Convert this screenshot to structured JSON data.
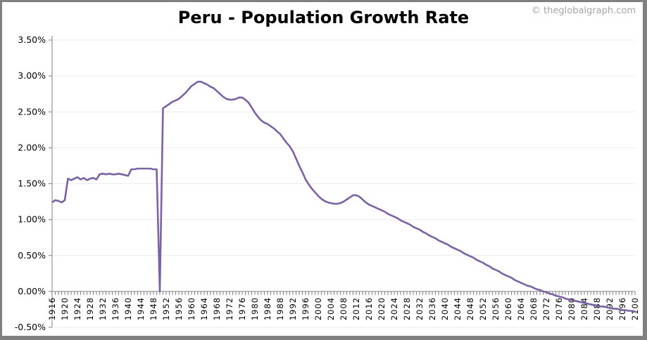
{
  "chart_data": {
    "type": "line",
    "title": "Peru - Population Growth Rate",
    "credit": "© theglobalgraph.com",
    "xlabel": "",
    "ylabel": "",
    "x_range": [
      1916,
      2100
    ],
    "x_step": 1,
    "x_tick_labels": [
      "1916",
      "1920",
      "1924",
      "1928",
      "1932",
      "1936",
      "1940",
      "1944",
      "1948",
      "1952",
      "1956",
      "1960",
      "1964",
      "1968",
      "1972",
      "1976",
      "1980",
      "1984",
      "1988",
      "1992",
      "1996",
      "2000",
      "2004",
      "2008",
      "2012",
      "2016",
      "2020",
      "2024",
      "2028",
      "2032",
      "2036",
      "2040",
      "2044",
      "2048",
      "2052",
      "2056",
      "2060",
      "2064",
      "2068",
      "2072",
      "2076",
      "2080",
      "2084",
      "2088",
      "2092",
      "2096",
      "2100"
    ],
    "ylim": [
      -0.5,
      3.5
    ],
    "y_unit": "%",
    "y_tick_labels": [
      "-0.50%",
      "0.00%",
      "0.50%",
      "1.00%",
      "1.50%",
      "2.00%",
      "2.50%",
      "3.00%",
      "3.50%"
    ],
    "y_ticks": [
      -0.5,
      0,
      0.5,
      1,
      1.5,
      2,
      2.5,
      3,
      3.5
    ],
    "grid": "horizontal",
    "line_color": "#7b62a3",
    "series": [
      {
        "values": [
          1.24,
          1.27,
          1.26,
          1.24,
          1.27,
          1.57,
          1.55,
          1.57,
          1.59,
          1.56,
          1.58,
          1.55,
          1.57,
          1.58,
          1.56,
          1.63,
          1.64,
          1.63,
          1.64,
          1.63,
          1.63,
          1.64,
          1.63,
          1.62,
          1.61,
          1.7,
          1.7,
          1.71,
          1.71,
          1.71,
          1.71,
          1.71,
          1.7,
          1.7,
          0.0,
          2.55,
          2.58,
          2.61,
          2.64,
          2.66,
          2.68,
          2.72,
          2.76,
          2.81,
          2.86,
          2.89,
          2.92,
          2.92,
          2.9,
          2.88,
          2.85,
          2.83,
          2.79,
          2.75,
          2.71,
          2.68,
          2.67,
          2.67,
          2.68,
          2.7,
          2.7,
          2.67,
          2.63,
          2.56,
          2.49,
          2.43,
          2.38,
          2.35,
          2.33,
          2.3,
          2.27,
          2.23,
          2.19,
          2.13,
          2.07,
          2.02,
          1.95,
          1.85,
          1.75,
          1.66,
          1.56,
          1.49,
          1.43,
          1.38,
          1.33,
          1.29,
          1.26,
          1.24,
          1.23,
          1.22,
          1.22,
          1.23,
          1.25,
          1.28,
          1.31,
          1.34,
          1.34,
          1.32,
          1.28,
          1.24,
          1.21,
          1.19,
          1.17,
          1.15,
          1.13,
          1.11,
          1.08,
          1.06,
          1.04,
          1.02,
          0.99,
          0.97,
          0.95,
          0.93,
          0.9,
          0.88,
          0.86,
          0.83,
          0.81,
          0.78,
          0.76,
          0.74,
          0.71,
          0.69,
          0.67,
          0.65,
          0.62,
          0.6,
          0.58,
          0.56,
          0.53,
          0.51,
          0.49,
          0.47,
          0.44,
          0.42,
          0.4,
          0.37,
          0.35,
          0.32,
          0.3,
          0.28,
          0.25,
          0.23,
          0.21,
          0.19,
          0.16,
          0.14,
          0.12,
          0.1,
          0.08,
          0.07,
          0.05,
          0.03,
          0.02,
          0.0,
          -0.01,
          -0.03,
          -0.04,
          -0.06,
          -0.07,
          -0.08,
          -0.1,
          -0.11,
          -0.12,
          -0.13,
          -0.14,
          -0.15,
          -0.16,
          -0.17,
          -0.18,
          -0.19,
          -0.2,
          -0.21,
          -0.21,
          -0.22,
          -0.23,
          -0.24,
          -0.24,
          -0.25,
          -0.26,
          -0.26,
          -0.27,
          -0.27,
          -0.28
        ]
      }
    ]
  }
}
